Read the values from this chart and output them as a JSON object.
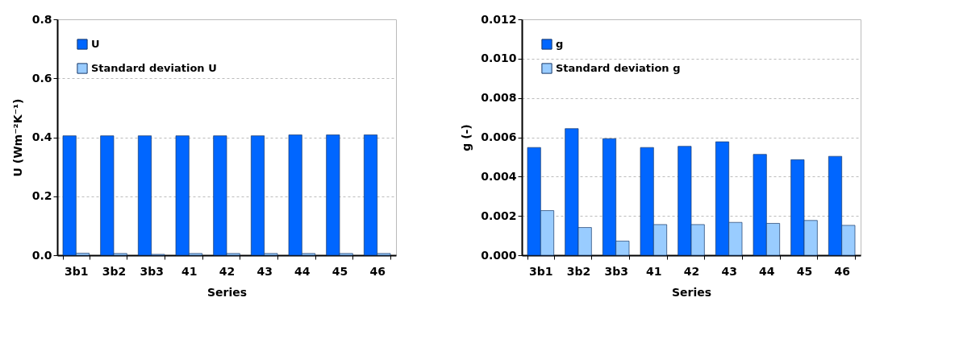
{
  "chart_data": [
    {
      "type": "bar",
      "xlabel": "Series",
      "ylabel": "U (Wm⁻²K⁻¹)",
      "categories": [
        "3b1",
        "3b2",
        "3b3",
        "41",
        "42",
        "43",
        "44",
        "45",
        "46"
      ],
      "series": [
        {
          "name": "U",
          "color": "#0066ff",
          "values": [
            0.405,
            0.405,
            0.405,
            0.405,
            0.405,
            0.405,
            0.408,
            0.408,
            0.408
          ]
        },
        {
          "name": "Standard deviation U",
          "color": "#99ccff",
          "values": [
            0.007,
            0.006,
            0.003,
            0.006,
            0.006,
            0.006,
            0.006,
            0.006,
            0.006
          ]
        }
      ],
      "ylim": [
        0,
        0.8
      ],
      "yticks": [
        {
          "value": 0,
          "label": "0.0"
        },
        {
          "value": 0.2,
          "label": "0.2"
        },
        {
          "value": 0.4,
          "label": "0.4"
        },
        {
          "value": 0.6,
          "label": "0.6"
        },
        {
          "value": 0.8,
          "label": "0.8"
        }
      ],
      "grid": "y",
      "legend": "top left"
    },
    {
      "type": "bar",
      "xlabel": "Series",
      "ylabel": "g (-)",
      "categories": [
        "3b1",
        "3b2",
        "3b3",
        "41",
        "42",
        "43",
        "44",
        "45",
        "46"
      ],
      "series": [
        {
          "name": "g",
          "color": "#0066ff",
          "values": [
            0.00548,
            0.00644,
            0.00593,
            0.00548,
            0.00554,
            0.00577,
            0.00513,
            0.00486,
            0.00503
          ]
        },
        {
          "name": "Standard deviation g",
          "color": "#99ccff",
          "values": [
            0.00227,
            0.00141,
            0.00072,
            0.00156,
            0.00156,
            0.00167,
            0.00162,
            0.00177,
            0.00152
          ]
        }
      ],
      "ylim": [
        0,
        0.012
      ],
      "yticks": [
        {
          "value": 0,
          "label": "0.000"
        },
        {
          "value": 0.002,
          "label": "0.002"
        },
        {
          "value": 0.004,
          "label": "0.004"
        },
        {
          "value": 0.006,
          "label": "0.006"
        },
        {
          "value": 0.008,
          "label": "0.008"
        },
        {
          "value": 0.01,
          "label": "0.010"
        },
        {
          "value": 0.012,
          "label": "0.012"
        }
      ],
      "grid": "y",
      "legend": "top left"
    }
  ]
}
